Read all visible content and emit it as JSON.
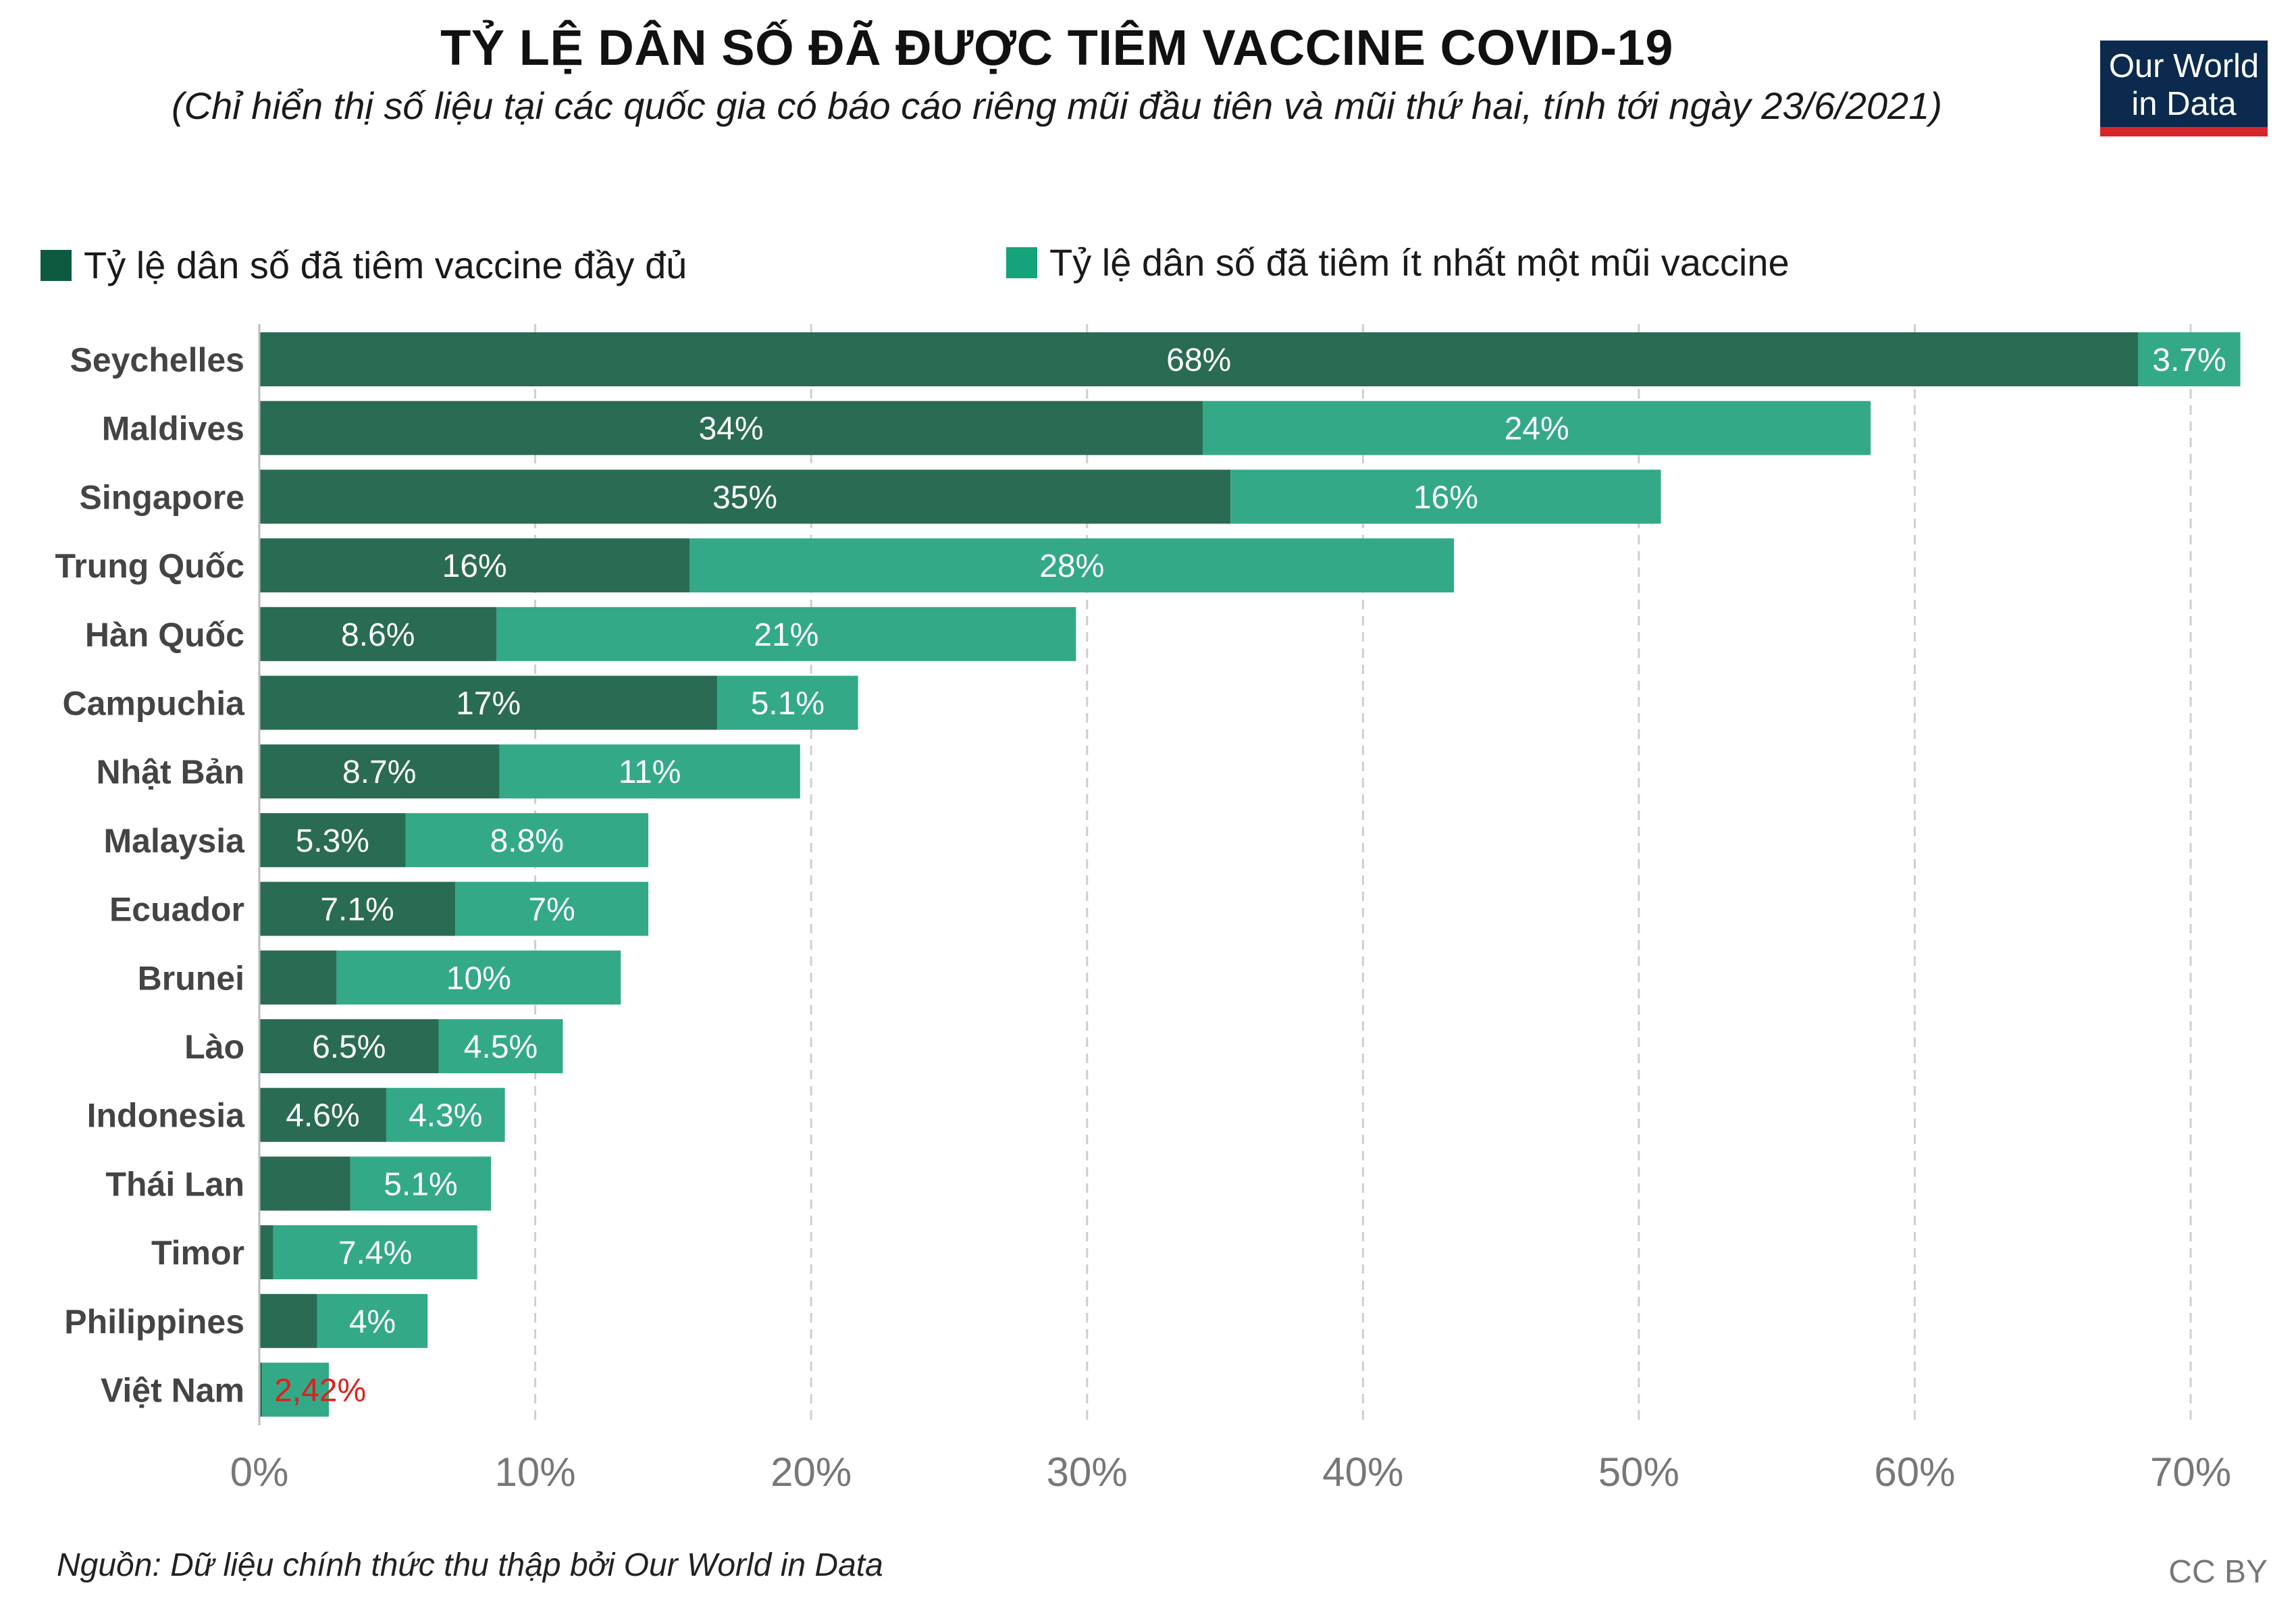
{
  "header": {
    "title": "TỶ LỆ DÂN SỐ ĐÃ ĐƯỢC TIÊM VACCINE COVID-19",
    "subtitle": "(Chỉ hiển thị số liệu tại các quốc gia có báo cáo riêng mũi đầu tiên và mũi thứ hai, tính tới ngày 23/6/2021)"
  },
  "logo": {
    "line1": "Our World",
    "line2": "in Data"
  },
  "legend": {
    "full": "Tỷ lệ dân số đã tiêm vaccine đầy đủ",
    "partial": "Tỷ lệ dân số đã tiêm ít nhất một mũi vaccine"
  },
  "footer": {
    "source": "Nguồn: Dữ liệu chính thức thu thập bởi Our World in Data",
    "license": "CC BY"
  },
  "colors": {
    "full": "#2a6b53",
    "partial": "#33a987",
    "legend_full": "#0d5a40",
    "legend_partial": "#14a37a",
    "highlight": "#e0201b",
    "grid": "#cfcfcf",
    "country_label": "#444444",
    "tick_label": "#777777"
  },
  "chart_data": {
    "type": "bar",
    "orientation": "horizontal",
    "stacked": true,
    "title": "TỶ LỆ DÂN SỐ ĐÃ ĐƯỢC TIÊM VACCINE COVID-19",
    "xlim": [
      0,
      72
    ],
    "xticks": [
      0,
      10,
      20,
      30,
      40,
      50,
      60,
      70
    ],
    "xtick_labels": [
      "0%",
      "10%",
      "20%",
      "30%",
      "40%",
      "50%",
      "60%",
      "70%"
    ],
    "grid": "vertical dashed",
    "categories": [
      "Seychelles",
      "Maldives",
      "Singapore",
      "Trung Quốc",
      "Hàn Quốc",
      "Campuchia",
      "Nhật Bản",
      "Malaysia",
      "Ecuador",
      "Brunei",
      "Lào",
      "Indonesia",
      "Thái Lan",
      "Timor",
      "Philippines",
      "Việt Nam"
    ],
    "series": [
      {
        "name": "Tỷ lệ dân số đã tiêm vaccine đầy đủ",
        "values": [
          68.1,
          34.2,
          35.2,
          15.6,
          8.6,
          16.6,
          8.7,
          5.3,
          7.1,
          2.8,
          6.5,
          4.6,
          3.3,
          0.5,
          2.1,
          0.1
        ],
        "labels": [
          "68%",
          "34%",
          "35%",
          "16%",
          "8.6%",
          "17%",
          "8.7%",
          "5.3%",
          "7.1%",
          "",
          "6.5%",
          "4.6%",
          "",
          "",
          "",
          ""
        ]
      },
      {
        "name": "Tỷ lệ dân số đã tiêm ít nhất một mũi vaccine",
        "values": [
          3.7,
          24.2,
          15.6,
          27.7,
          21.0,
          5.1,
          10.9,
          8.8,
          7.0,
          10.3,
          4.5,
          4.3,
          5.1,
          7.4,
          4.0,
          2.42
        ],
        "labels": [
          "3.7%",
          "24%",
          "16%",
          "28%",
          "21%",
          "5.1%",
          "11%",
          "8.8%",
          "7%",
          "10%",
          "4.5%",
          "4.3%",
          "5.1%",
          "7.4%",
          "4%",
          "2,42%"
        ]
      }
    ],
    "highlight_category": "Việt Nam"
  }
}
